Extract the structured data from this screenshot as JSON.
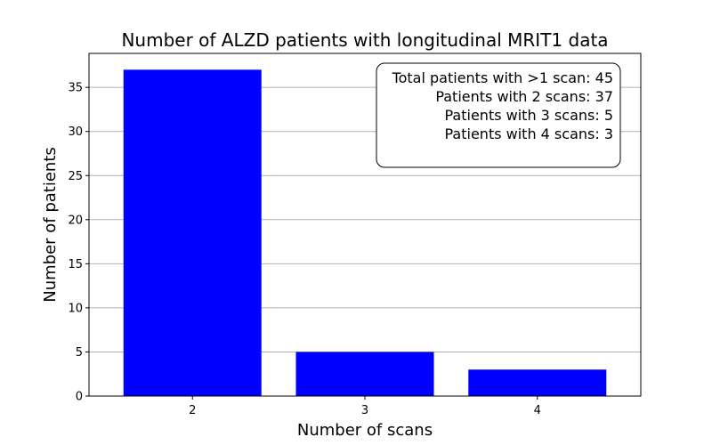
{
  "chart_data": {
    "type": "bar",
    "title": "Number of ALZD patients with longitudinal MRIT1 data",
    "xlabel": "Number of scans",
    "ylabel": "Number of patients",
    "categories": [
      "2",
      "3",
      "4"
    ],
    "values": [
      37,
      5,
      3
    ],
    "ylim": [
      0,
      38.85
    ],
    "yticks": [
      0,
      5,
      10,
      15,
      20,
      25,
      30,
      35
    ],
    "bar_color": "#0000ff",
    "grid": "y-major",
    "annotation": {
      "placement": "top-right",
      "lines": [
        "Total patients with >1 scan: 45",
        "Patients with 2 scans: 37",
        "Patients with 3 scans: 5",
        "Patients with 4 scans: 3"
      ]
    }
  }
}
